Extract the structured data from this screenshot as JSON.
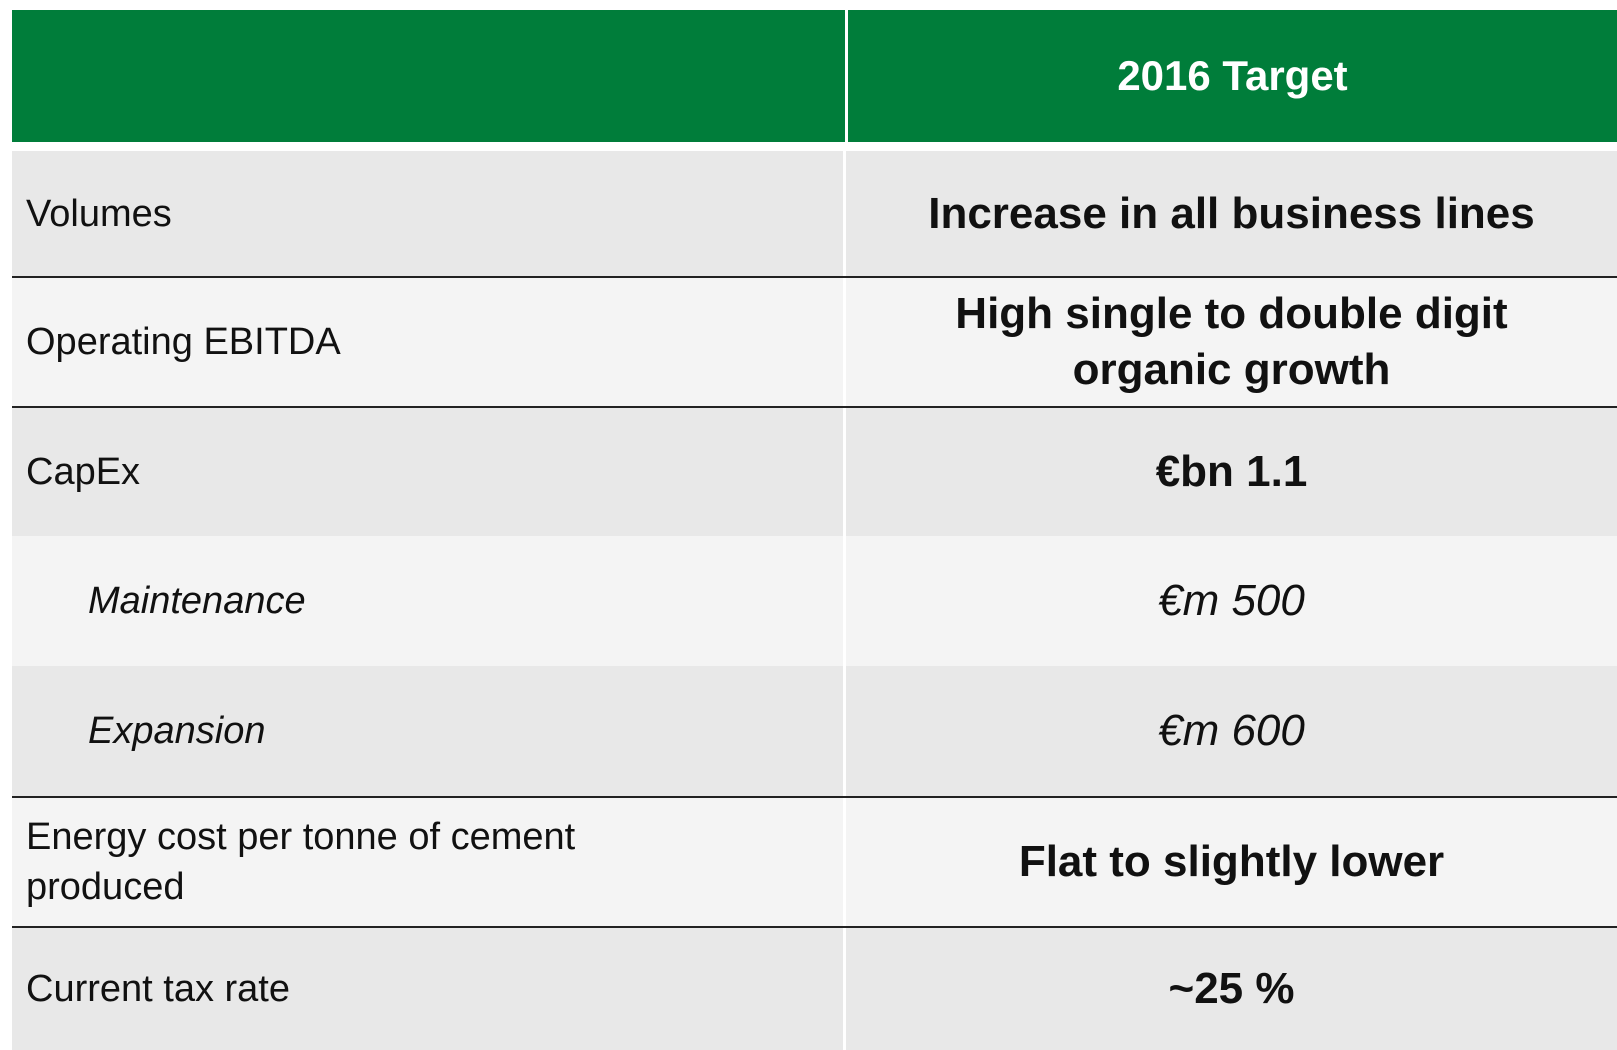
{
  "table": {
    "header": [
      "2016 Target"
    ],
    "rows": [
      [
        "Volumes",
        "Increase in all business lines"
      ],
      [
        "Operating EBITDA",
        "High single to double digit organic growth"
      ],
      [
        "CapEx",
        "€bn 1.1"
      ],
      [
        "Maintenance",
        "€m 500"
      ],
      [
        "Expansion",
        "€m 600"
      ],
      [
        "Energy cost per tonne of cement produced",
        "Flat to slightly lower"
      ],
      [
        "Current tax rate",
        "~25 %"
      ]
    ]
  }
}
